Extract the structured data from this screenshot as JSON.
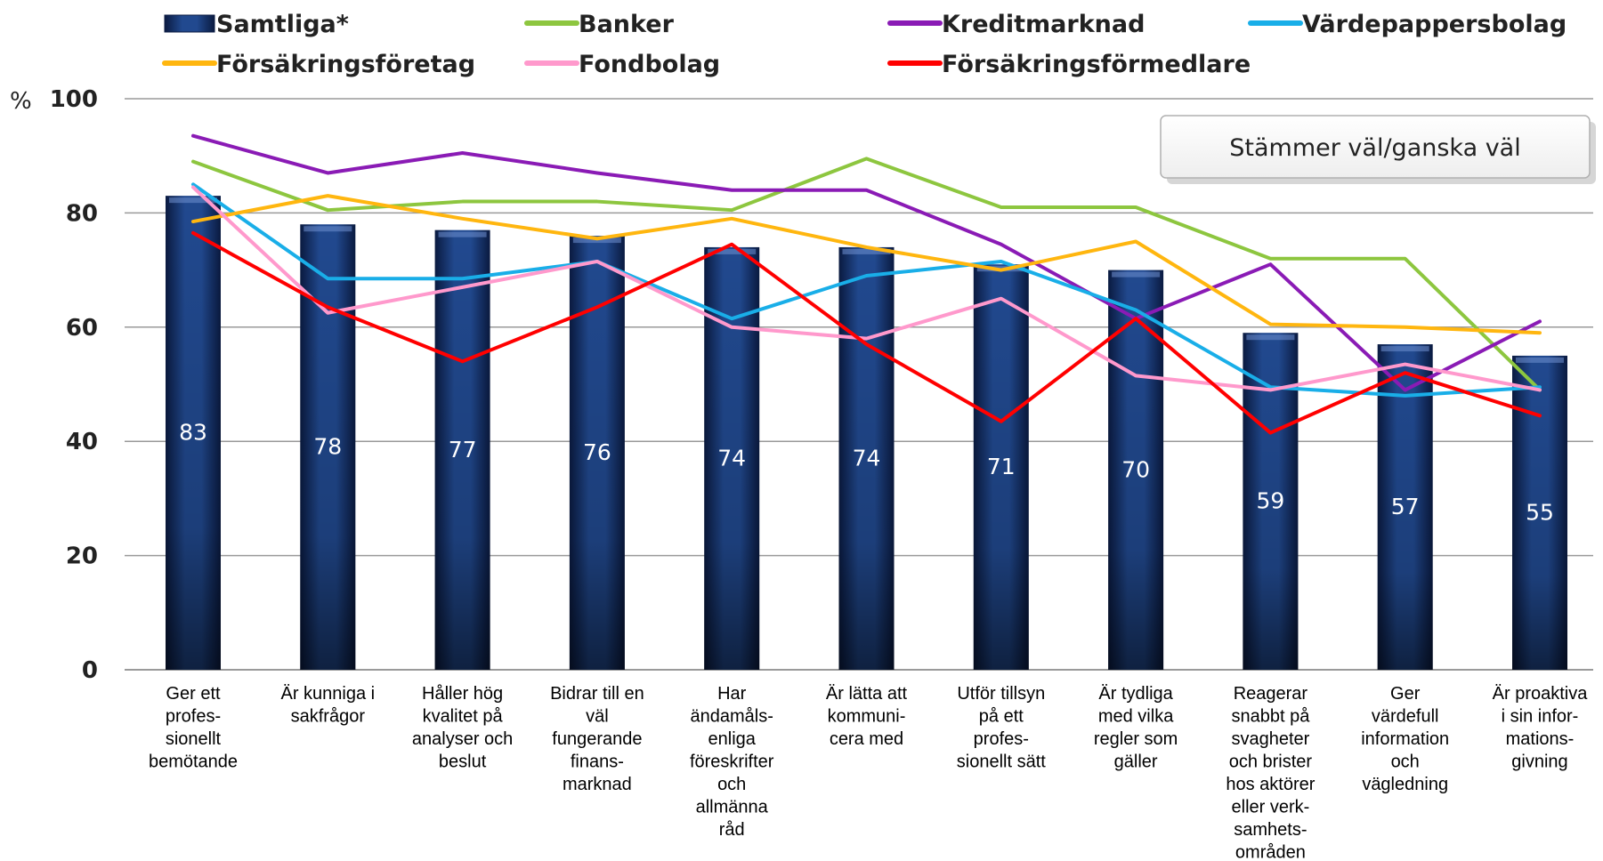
{
  "chart_data": {
    "type": "bar+line",
    "y_unit": "%",
    "ylim": [
      0,
      100
    ],
    "yticks": [
      0,
      20,
      40,
      60,
      80,
      100
    ],
    "grid": true,
    "legend_position": "top",
    "annotation": "Stämmer väl/ganska väl",
    "categories": [
      [
        "Ger ett",
        "profes-",
        "sionellt",
        "bemötande"
      ],
      [
        "Är kunniga i",
        "sakfrågor"
      ],
      [
        "Håller hög",
        "kvalitet på",
        "analyser och",
        "beslut"
      ],
      [
        "Bidrar till en",
        "väl",
        "fungerande",
        "finans-",
        "marknad"
      ],
      [
        "Har",
        "ändamåls-",
        "enliga",
        "föreskrifter",
        "och",
        "allmänna",
        "råd"
      ],
      [
        "Är lätta att",
        "kommuni-",
        "cera med"
      ],
      [
        "Utför tillsyn",
        "på ett",
        "profes-",
        "sionellt sätt"
      ],
      [
        "Är tydliga",
        "med vilka",
        "regler som",
        "gäller"
      ],
      [
        "Reagerar",
        "snabbt på",
        "svagheter",
        "och brister",
        "hos aktörer",
        "eller verk-",
        "samhets-",
        "områden"
      ],
      [
        "Ger",
        "värdefull",
        "information",
        "och",
        "vägledning"
      ],
      [
        "Är proaktiva",
        "i sin infor-",
        "mations-",
        "givning"
      ]
    ],
    "bar_series": {
      "name": "Samtliga*",
      "color": "#1b3a78",
      "values": [
        83,
        78,
        77,
        76,
        74,
        74,
        71,
        70,
        59,
        57,
        55
      ],
      "labels": [
        "83",
        "78",
        "77",
        "76",
        "74",
        "74",
        "71",
        "70",
        "59",
        "57",
        "55"
      ]
    },
    "line_series": [
      {
        "name": "Banker",
        "color": "#8dc63f",
        "values": [
          89,
          80.5,
          82,
          82,
          80.5,
          89.5,
          81,
          81,
          72,
          72,
          49
        ]
      },
      {
        "name": "Kreditmarknad",
        "color": "#8a1bb5",
        "values": [
          93.5,
          87,
          90.5,
          87,
          84,
          84,
          74.5,
          61.5,
          71,
          49,
          61
        ]
      },
      {
        "name": "Värdepappersbolag",
        "color": "#19aee8",
        "values": [
          85,
          68.5,
          68.5,
          71.5,
          61.5,
          69,
          71.5,
          63,
          49.5,
          48,
          49.5
        ]
      },
      {
        "name": "Försäkringsföretag",
        "color": "#ffb60f",
        "values": [
          78.5,
          83,
          79,
          75.5,
          79,
          74,
          70,
          75,
          60.5,
          60,
          59
        ]
      },
      {
        "name": "Fondbolag",
        "color": "#ff99cc",
        "values": [
          84.5,
          62.5,
          67,
          71.5,
          60,
          58,
          65,
          51.5,
          49,
          53.5,
          49
        ]
      },
      {
        "name": "Försäkringsförmedlare",
        "color": "#ff0000",
        "values": [
          76.5,
          63.5,
          54,
          63.5,
          74.5,
          57,
          43.5,
          61.5,
          41.5,
          52,
          44.5
        ]
      }
    ]
  }
}
